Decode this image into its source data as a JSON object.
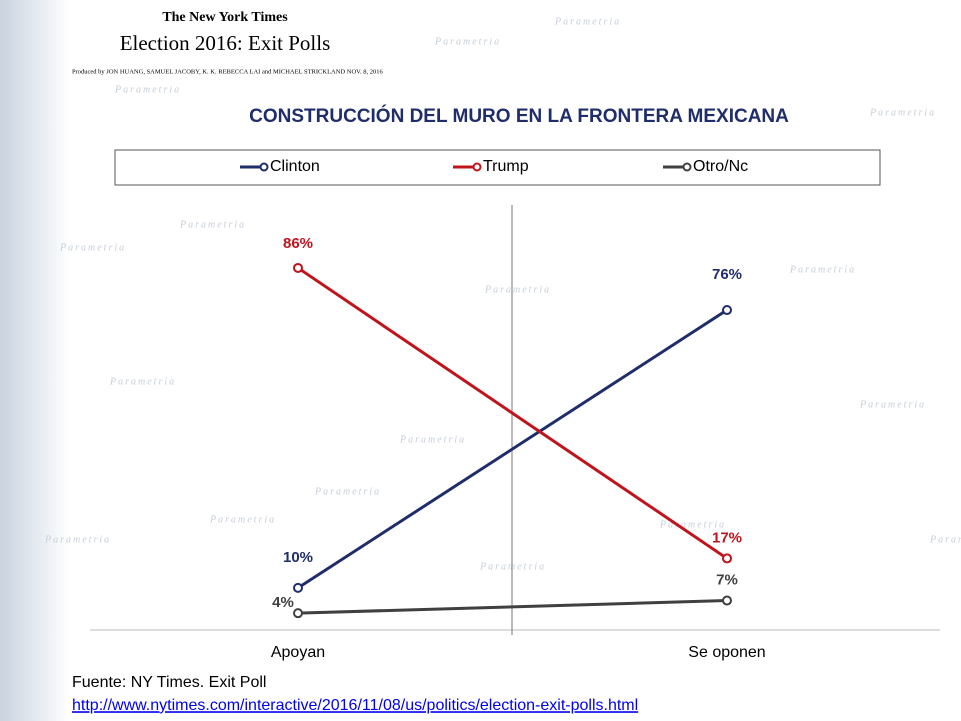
{
  "header": {
    "brand": "The New York Times",
    "title": "Election 2016: Exit Polls",
    "credits": "Produced by JON HUANG, SAMUEL JACOBY, K. K. REBECCA LAI and MICHAEL STRICKLAND   NOV. 8, 2016"
  },
  "watermark": "Parametria",
  "chart_data": {
    "type": "line",
    "title": "CONSTRUCCIÓN DEL MURO EN LA FRONTERA MEXICANA",
    "categories": [
      "Apoyan",
      "Se oponen"
    ],
    "series": [
      {
        "name": "Clinton",
        "color": "#1f2d6b",
        "values": [
          10,
          76
        ],
        "value_labels": [
          "10%",
          "76%"
        ]
      },
      {
        "name": "Trump",
        "color": "#c0141c",
        "values": [
          86,
          17
        ],
        "value_labels": [
          "86%",
          "17%"
        ]
      },
      {
        "name": "Otro/Nc",
        "color": "#404040",
        "values": [
          4,
          7
        ],
        "value_labels": [
          "4%",
          "7%"
        ]
      }
    ],
    "ylim": [
      0,
      100
    ],
    "legend": "top"
  },
  "footer": {
    "source": "Fuente: NY Times. Exit Poll",
    "url": "http://www.nytimes.com/interactive/2016/11/08/us/politics/election-exit-polls.html"
  }
}
